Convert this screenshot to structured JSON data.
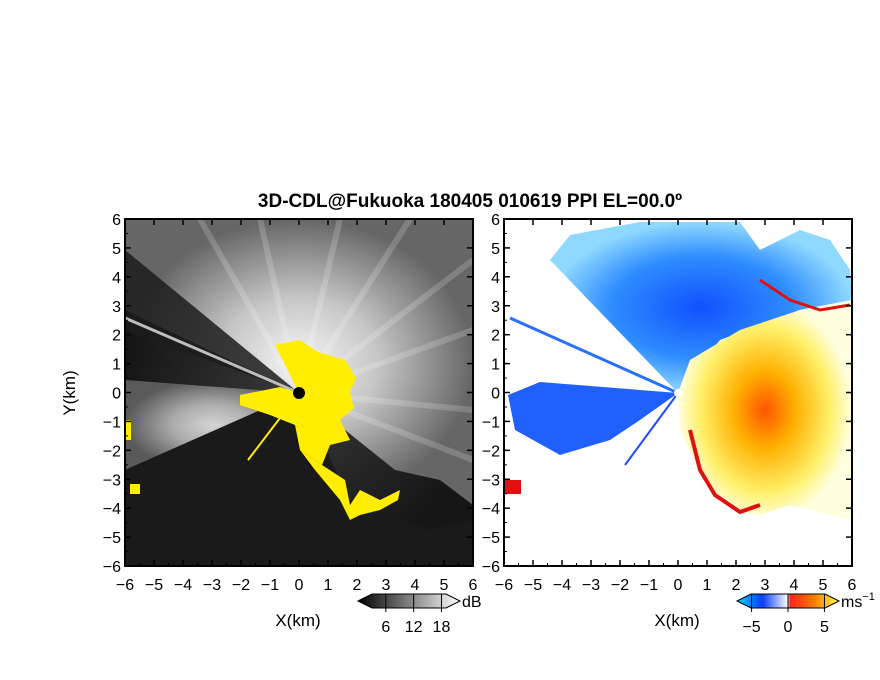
{
  "chart_data": [
    {
      "type": "heatmap",
      "title": "3D-CDL@Fukuoka 180405 010619 PPI EL=00.0º",
      "panel": "left",
      "xlabel": "X(km)",
      "ylabel": "Y(km)",
      "xlim": [
        -6,
        6
      ],
      "ylim": [
        -6,
        6
      ],
      "x_ticks": [
        "−6",
        "−5",
        "−4",
        "−3",
        "−2",
        "−1",
        "0",
        "1",
        "2",
        "3",
        "4",
        "5",
        "6"
      ],
      "y_ticks": [
        "−6",
        "−5",
        "−4",
        "−3",
        "−2",
        "−1",
        "0",
        "1",
        "2",
        "3",
        "4",
        "5",
        "6"
      ],
      "colorbar": {
        "unit": "dB",
        "ticks": [
          "6",
          "12",
          "18"
        ],
        "range": [
          0,
          22
        ],
        "colormap": "grayscale"
      },
      "highlight_color": "#ffee00",
      "grid": false
    },
    {
      "type": "heatmap",
      "panel": "right",
      "xlabel": "X(km)",
      "xlim": [
        -6,
        6
      ],
      "ylim": [
        -6,
        6
      ],
      "x_ticks": [
        "−6",
        "−5",
        "−4",
        "−3",
        "−2",
        "−1",
        "0",
        "1",
        "2",
        "3",
        "4",
        "5",
        "6"
      ],
      "y_ticks": [
        "−6",
        "−5",
        "−4",
        "−3",
        "−2",
        "−1",
        "0",
        "1",
        "2",
        "3",
        "4",
        "5",
        "6"
      ],
      "colorbar": {
        "unit": "ms",
        "unit_exponent": "−1",
        "ticks": [
          "−5",
          "0",
          "5"
        ],
        "range": [
          -7,
          7
        ],
        "colormap": "blue-white-orange"
      },
      "grid": false
    }
  ]
}
